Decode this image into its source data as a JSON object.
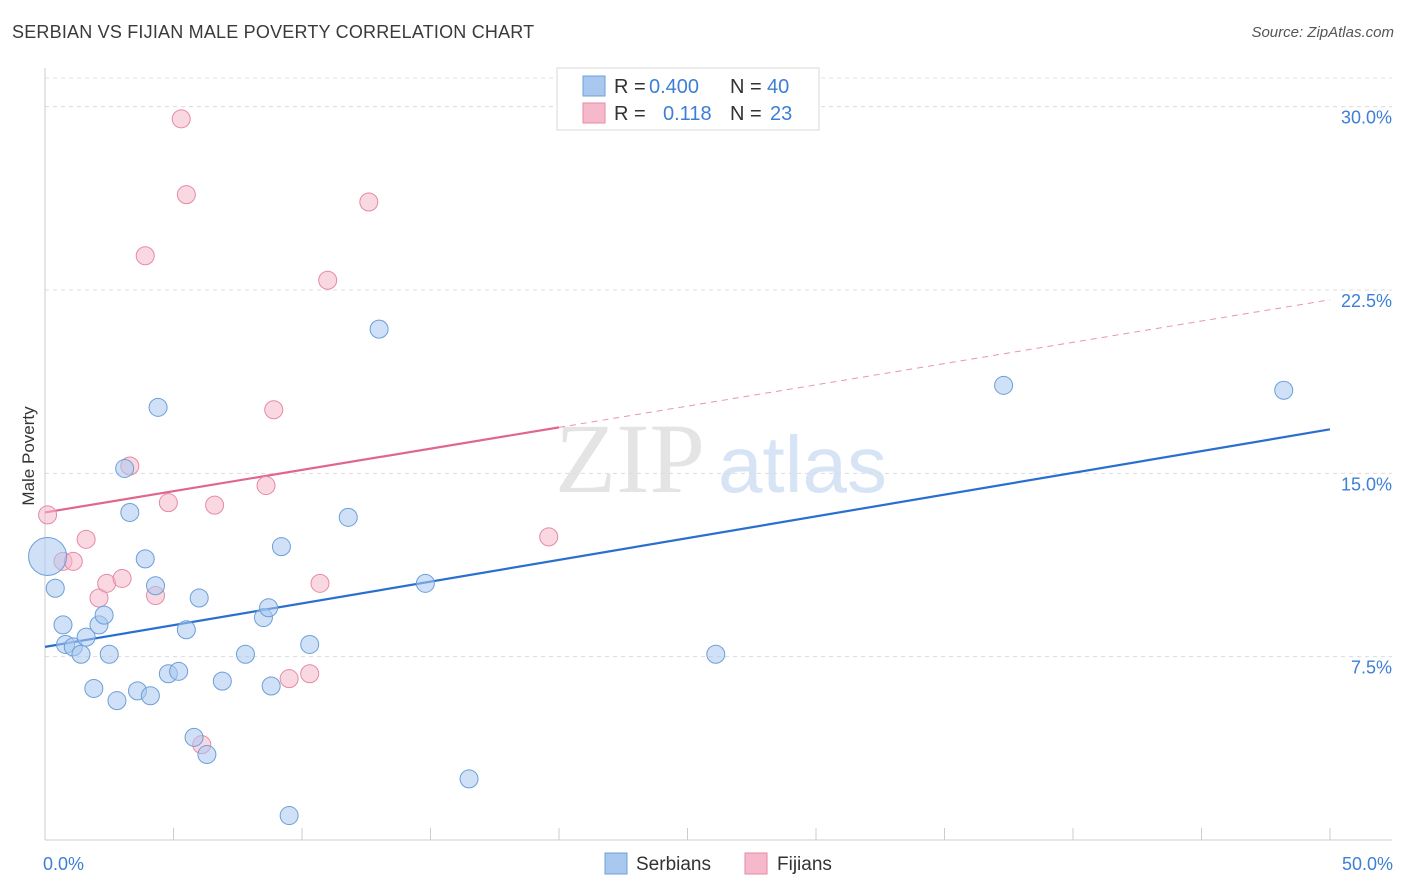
{
  "title": "SERBIAN VS FIJIAN MALE POVERTY CORRELATION CHART",
  "source": "Source: ZipAtlas.com",
  "watermark": {
    "zip": "ZIP",
    "atlas": "atlas"
  },
  "legend": {
    "rows": [
      {
        "r_label": "R =",
        "r_value": "0.400",
        "n_label": "N =",
        "n_value": "40",
        "color": "#a9c8f0"
      },
      {
        "r_label": "R =",
        "r_value": "0.118",
        "n_label": "N =",
        "n_value": "23",
        "color": "#f6b8cb"
      }
    ]
  },
  "bottom_legend": {
    "serbians": "Serbians",
    "fijians": "Fijians"
  },
  "colors": {
    "serbian_fill": "#a9c8f0",
    "serbian_stroke": "#6b9fd9",
    "serbian_line": "#2a6fd0",
    "fijian_fill": "#f6b8cb",
    "fijian_stroke": "#e58aa6",
    "fijian_line": "#e0668e",
    "tick_text": "#3d7fd6"
  },
  "chart_data": {
    "type": "scatter",
    "title": "SERBIAN VS FIJIAN MALE POVERTY CORRELATION CHART",
    "xlabel": "",
    "ylabel": "Male Poverty",
    "xlim": [
      0,
      50
    ],
    "ylim": [
      0,
      31.5
    ],
    "x_tick_labels": [
      "0.0%",
      "50.0%"
    ],
    "y_ticks": [
      7.5,
      15.0,
      22.5,
      30.0
    ],
    "y_tick_labels": [
      "7.5%",
      "15.0%",
      "22.5%",
      "30.0%"
    ],
    "grid": true,
    "series": [
      {
        "name": "Serbians",
        "r": 0.4,
        "n": 40,
        "points": [
          [
            0.1,
            11.6
          ],
          [
            0.4,
            10.3
          ],
          [
            0.7,
            8.8
          ],
          [
            0.8,
            8.0
          ],
          [
            1.1,
            7.9
          ],
          [
            1.4,
            7.6
          ],
          [
            1.6,
            8.3
          ],
          [
            1.9,
            6.2
          ],
          [
            2.1,
            8.8
          ],
          [
            2.3,
            9.2
          ],
          [
            2.5,
            7.6
          ],
          [
            2.8,
            5.7
          ],
          [
            3.1,
            15.2
          ],
          [
            3.3,
            13.4
          ],
          [
            3.6,
            6.1
          ],
          [
            3.9,
            11.5
          ],
          [
            4.1,
            5.9
          ],
          [
            4.3,
            10.4
          ],
          [
            4.4,
            17.7
          ],
          [
            4.8,
            6.8
          ],
          [
            5.2,
            6.9
          ],
          [
            5.5,
            8.6
          ],
          [
            5.8,
            4.2
          ],
          [
            6.0,
            9.9
          ],
          [
            6.3,
            3.5
          ],
          [
            6.9,
            6.5
          ],
          [
            7.8,
            7.6
          ],
          [
            8.5,
            9.1
          ],
          [
            8.7,
            9.5
          ],
          [
            8.8,
            6.3
          ],
          [
            9.2,
            12.0
          ],
          [
            9.5,
            1.0
          ],
          [
            10.3,
            8.0
          ],
          [
            11.8,
            13.2
          ],
          [
            13.0,
            20.9
          ],
          [
            14.8,
            10.5
          ],
          [
            16.5,
            2.5
          ],
          [
            26.1,
            7.6
          ],
          [
            37.3,
            18.6
          ],
          [
            48.2,
            18.4
          ]
        ]
      },
      {
        "name": "Fijians",
        "r": 0.118,
        "n": 23,
        "points": [
          [
            0.1,
            13.3
          ],
          [
            0.7,
            11.4
          ],
          [
            1.1,
            11.4
          ],
          [
            1.6,
            12.3
          ],
          [
            2.1,
            9.9
          ],
          [
            2.4,
            10.5
          ],
          [
            3.0,
            10.7
          ],
          [
            3.3,
            15.3
          ],
          [
            3.9,
            23.9
          ],
          [
            4.3,
            10.0
          ],
          [
            4.8,
            13.8
          ],
          [
            5.3,
            29.5
          ],
          [
            5.5,
            26.4
          ],
          [
            6.1,
            3.9
          ],
          [
            6.6,
            13.7
          ],
          [
            8.6,
            14.5
          ],
          [
            8.9,
            17.6
          ],
          [
            9.5,
            6.6
          ],
          [
            10.3,
            6.8
          ],
          [
            10.7,
            10.5
          ],
          [
            11.0,
            22.9
          ],
          [
            12.6,
            26.1
          ],
          [
            19.6,
            12.4
          ]
        ]
      }
    ],
    "trend_lines": [
      {
        "name": "Serbians",
        "x": [
          0,
          50
        ],
        "y": [
          7.9,
          16.8
        ]
      },
      {
        "name": "Fijians",
        "x": [
          0,
          50
        ],
        "y": [
          13.4,
          22.1
        ],
        "solid_until_x": 20
      }
    ]
  }
}
